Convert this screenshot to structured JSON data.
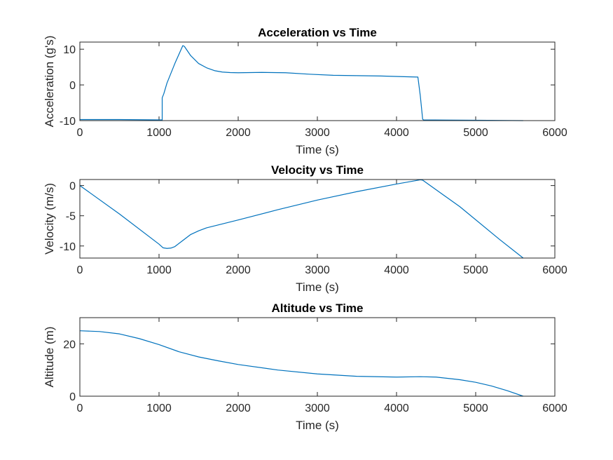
{
  "chart_data": [
    {
      "type": "line",
      "title": "Acceleration vs Time",
      "xlabel": "Time (s)",
      "ylabel": "Acceleration (g's)",
      "xlim": [
        0,
        6000
      ],
      "ylim": [
        -10,
        12
      ],
      "xticks": [
        0,
        1000,
        2000,
        3000,
        4000,
        5000,
        6000
      ],
      "yticks": [
        -10,
        0,
        10
      ],
      "grid": false,
      "color": "#0072BD",
      "x": [
        0,
        500,
        1000,
        1030,
        1040,
        1040,
        1060,
        1100,
        1200,
        1300,
        1320,
        1400,
        1500,
        1600,
        1700,
        1800,
        1900,
        2000,
        2300,
        2600,
        2900,
        3200,
        3500,
        3800,
        4100,
        4260,
        4270,
        4300,
        4330,
        4340,
        5000,
        5600
      ],
      "y": [
        -9.7,
        -9.7,
        -9.8,
        -9.8,
        -10.0,
        -3.6,
        -2.5,
        0.5,
        6.0,
        11.0,
        10.8,
        8.2,
        6.0,
        4.8,
        4.0,
        3.6,
        3.45,
        3.4,
        3.5,
        3.4,
        3.0,
        2.7,
        2.6,
        2.5,
        2.3,
        2.2,
        2.2,
        -3.0,
        -9.6,
        -9.8,
        -9.9,
        -10.0
      ]
    },
    {
      "type": "line",
      "title": "Velocity vs Time",
      "xlabel": "Time (s)",
      "ylabel": "Velocity (m/s)",
      "xlim": [
        0,
        6000
      ],
      "ylim": [
        -12,
        1
      ],
      "xticks": [
        0,
        1000,
        2000,
        3000,
        4000,
        5000,
        6000
      ],
      "yticks": [
        -10,
        -5,
        0
      ],
      "grid": false,
      "color": "#0072BD",
      "x": [
        0,
        500,
        1000,
        1050,
        1100,
        1150,
        1200,
        1300,
        1400,
        1500,
        1600,
        1800,
        2000,
        2500,
        3000,
        3500,
        4000,
        4300,
        4330,
        4800,
        5300,
        5600
      ],
      "y": [
        0,
        -4.7,
        -9.7,
        -10.3,
        -10.4,
        -10.35,
        -10.1,
        -9.1,
        -8.1,
        -7.5,
        -7.0,
        -6.35,
        -5.7,
        -4.0,
        -2.4,
        -1.0,
        0.25,
        0.95,
        0.9,
        -3.5,
        -8.9,
        -12
      ]
    },
    {
      "type": "line",
      "title": "Altitude vs Time",
      "xlabel": "Time (s)",
      "ylabel": "Altitude (m)",
      "xlim": [
        0,
        6000
      ],
      "ylim": [
        0,
        30
      ],
      "xticks": [
        0,
        1000,
        2000,
        3000,
        4000,
        5000,
        6000
      ],
      "yticks": [
        0,
        20
      ],
      "grid": false,
      "color": "#0072BD",
      "x": [
        0,
        250,
        500,
        750,
        1000,
        1250,
        1500,
        1750,
        2000,
        2500,
        3000,
        3500,
        4000,
        4300,
        4500,
        4800,
        5000,
        5200,
        5400,
        5600
      ],
      "y": [
        25,
        24.7,
        23.8,
        22.0,
        19.7,
        17.0,
        15.0,
        13.5,
        12.1,
        10.0,
        8.5,
        7.6,
        7.3,
        7.45,
        7.3,
        6.3,
        5.3,
        3.9,
        2.1,
        0
      ]
    }
  ]
}
